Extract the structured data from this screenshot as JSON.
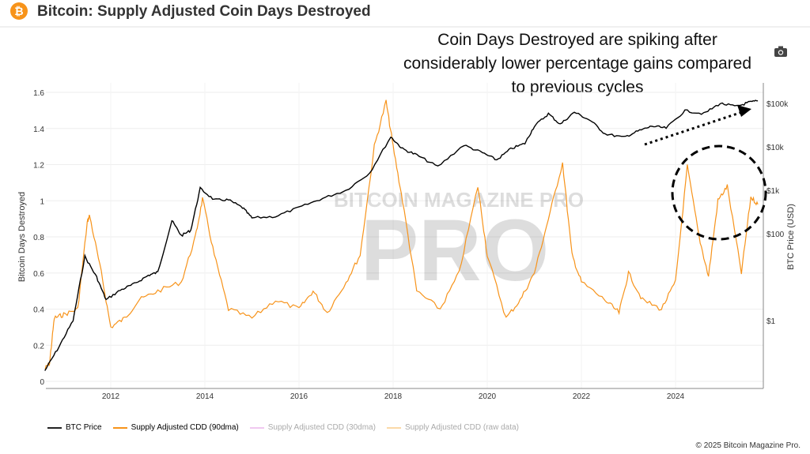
{
  "header": {
    "title": "Bitcoin: Supply Adjusted Coin Days Destroyed",
    "logo_icon": "bitcoin-icon",
    "camera_icon": "camera-icon"
  },
  "annotation": "Coin Days Destroyed are spiking after considerably lower percentage gains compared to previous cycles",
  "watermark": "BITCOIN MAGAZINE PRO",
  "copyright": "© 2025 Bitcoin Magazine Pro.",
  "chart_data": {
    "type": "line",
    "title": "Bitcoin: Supply Adjusted Coin Days Destroyed",
    "ylabel": "Bitcoin Days Destroyed",
    "y2label": "BTC Price (USD)",
    "ylim": [
      0,
      1.6
    ],
    "yticks": [
      "0",
      "0.2",
      "0.4",
      "0.6",
      "0.8",
      "1",
      "1.2",
      "1.4",
      "1.6"
    ],
    "y2scale": "log",
    "y2ticks": [
      "$1",
      "$100",
      "$1k",
      "$10k",
      "$100k"
    ],
    "xlim": [
      2010.6,
      2025.85
    ],
    "xticks": [
      "2012",
      "2014",
      "2016",
      "2018",
      "2020",
      "2022",
      "2024"
    ],
    "grid": true,
    "legend_position": "bottom",
    "colors": {
      "btc": "#000000",
      "cdd90": "#f7931a",
      "cdd30": "#f0c8f0",
      "raw": "#fbd9a8"
    },
    "legend": [
      "BTC Price",
      "Supply Adjusted CDD (90dma)",
      "Supply Adjusted CDD (30dma)",
      "Supply Adjusted CDD (raw data)"
    ],
    "series": [
      {
        "name": "BTC Price",
        "axis": "right",
        "x": [
          2010.6,
          2010.9,
          2011.2,
          2011.45,
          2011.7,
          2011.9,
          2012.2,
          2012.5,
          2012.8,
          2013.0,
          2013.3,
          2013.5,
          2013.7,
          2013.9,
          2014.2,
          2014.5,
          2014.8,
          2015.0,
          2015.5,
          2016.0,
          2016.5,
          2017.0,
          2017.5,
          2017.95,
          2018.2,
          2018.5,
          2018.95,
          2019.5,
          2019.9,
          2020.2,
          2020.5,
          2020.8,
          2021.0,
          2021.3,
          2021.55,
          2021.85,
          2022.2,
          2022.5,
          2022.9,
          2023.2,
          2023.5,
          2023.8,
          2024.2,
          2024.6,
          2024.95,
          2025.3,
          2025.55,
          2025.75
        ],
        "y": [
          0.07,
          0.25,
          1,
          30,
          10,
          3,
          5,
          7,
          11,
          13,
          200,
          90,
          120,
          1100,
          600,
          600,
          400,
          230,
          250,
          400,
          650,
          1000,
          2500,
          17000,
          9000,
          6500,
          3500,
          11000,
          7300,
          5000,
          9000,
          12000,
          30000,
          58000,
          33000,
          63000,
          40000,
          20000,
          16500,
          23000,
          30000,
          27000,
          68000,
          58000,
          100000,
          85000,
          105000,
          115000
        ]
      },
      {
        "name": "Supply Adjusted CDD (90dma)",
        "axis": "left",
        "x": [
          2010.6,
          2010.7,
          2010.8,
          2011.0,
          2011.3,
          2011.5,
          2011.55,
          2011.8,
          2012.0,
          2012.3,
          2012.6,
          2013.0,
          2013.5,
          2013.8,
          2013.95,
          2014.2,
          2014.5,
          2015.0,
          2015.5,
          2016.0,
          2016.3,
          2016.6,
          2017.0,
          2017.3,
          2017.6,
          2017.85,
          2018.0,
          2018.2,
          2018.5,
          2019.0,
          2019.4,
          2019.8,
          2020.0,
          2020.4,
          2020.7,
          2021.0,
          2021.3,
          2021.6,
          2021.8,
          2022.0,
          2022.5,
          2022.8,
          2023.0,
          2023.3,
          2023.7,
          2024.0,
          2024.25,
          2024.5,
          2024.7,
          2024.9,
          2025.1,
          2025.4,
          2025.6,
          2025.75
        ],
        "y": [
          0.07,
          0.1,
          0.35,
          0.37,
          0.4,
          0.88,
          0.92,
          0.6,
          0.3,
          0.35,
          0.45,
          0.5,
          0.55,
          0.8,
          1.01,
          0.7,
          0.4,
          0.35,
          0.45,
          0.4,
          0.5,
          0.38,
          0.55,
          0.7,
          1.3,
          1.55,
          1.3,
          1.0,
          0.5,
          0.4,
          0.6,
          1.08,
          0.7,
          0.35,
          0.45,
          0.6,
          0.9,
          1.21,
          0.7,
          0.55,
          0.45,
          0.38,
          0.6,
          0.45,
          0.4,
          0.55,
          1.19,
          0.8,
          0.58,
          1.0,
          1.08,
          0.6,
          1.02,
          0.98
        ]
      }
    ]
  }
}
